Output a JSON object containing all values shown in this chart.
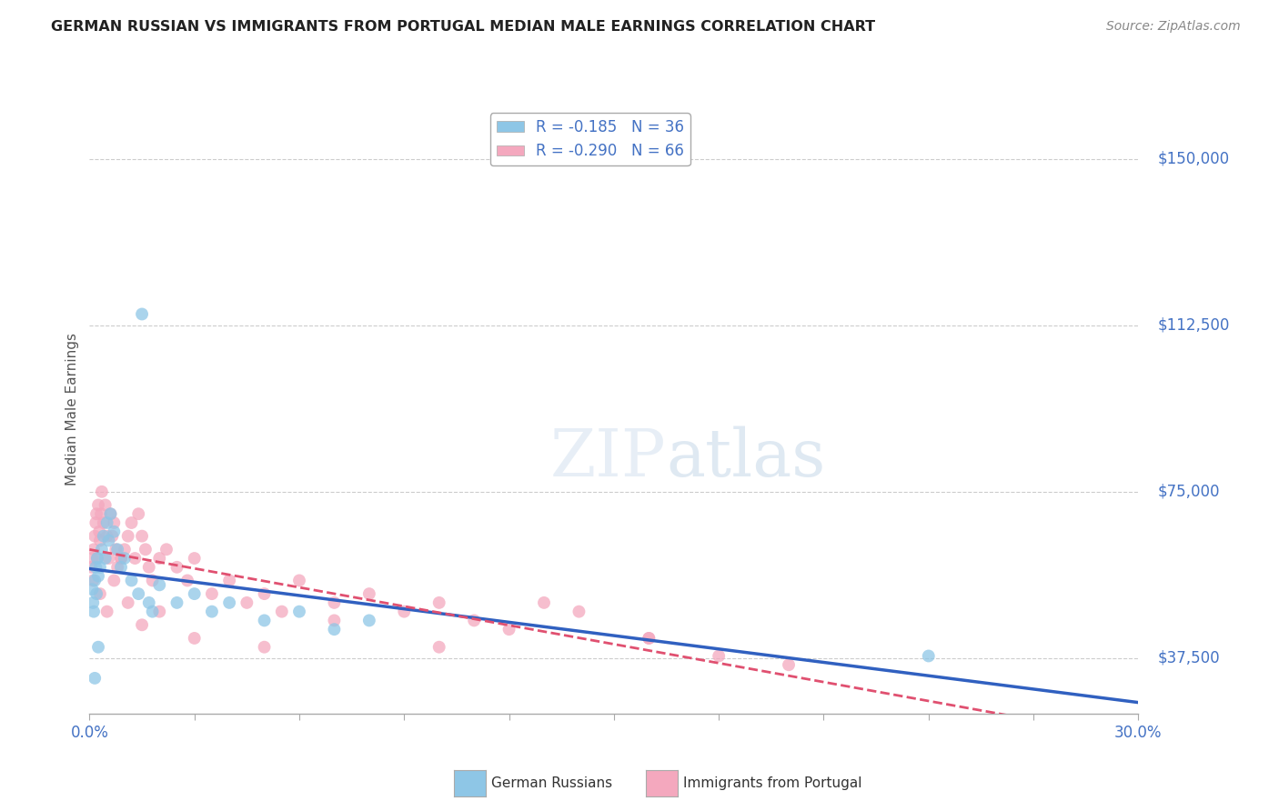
{
  "title": "GERMAN RUSSIAN VS IMMIGRANTS FROM PORTUGAL MEDIAN MALE EARNINGS CORRELATION CHART",
  "source": "Source: ZipAtlas.com",
  "ylabel": "Median Male Earnings",
  "yticks": [
    37500,
    75000,
    112500,
    150000
  ],
  "ytick_labels": [
    "$37,500",
    "$75,000",
    "$112,500",
    "$150,000"
  ],
  "xlim": [
    0.0,
    30.0
  ],
  "ylim": [
    25000,
    162000
  ],
  "watermark": "ZIPatlas",
  "legend_entry1": "R = -0.185   N = 36",
  "legend_entry2": "R = -0.290   N = 66",
  "legend_label1": "German Russians",
  "legend_label2": "Immigrants from Portugal",
  "color_blue": "#8ec6e6",
  "color_pink": "#f4a8be",
  "color_blue_line": "#3060c0",
  "color_pink_line": "#e05070",
  "axis_color": "#4472c4",
  "grid_color": "#cccccc",
  "blue_x": [
    0.08,
    0.1,
    0.12,
    0.15,
    0.18,
    0.2,
    0.22,
    0.25,
    0.3,
    0.35,
    0.4,
    0.45,
    0.5,
    0.55,
    0.6,
    0.7,
    0.8,
    0.9,
    1.0,
    1.2,
    1.4,
    1.7,
    2.0,
    2.5,
    3.0,
    3.5,
    4.0,
    5.0,
    6.0,
    7.0,
    8.0,
    1.5,
    1.8,
    24.0,
    0.15,
    0.25
  ],
  "blue_y": [
    53000,
    50000,
    48000,
    55000,
    58000,
    52000,
    60000,
    56000,
    58000,
    62000,
    65000,
    60000,
    68000,
    64000,
    70000,
    66000,
    62000,
    58000,
    60000,
    55000,
    52000,
    50000,
    54000,
    50000,
    52000,
    48000,
    50000,
    46000,
    48000,
    44000,
    46000,
    115000,
    48000,
    38000,
    33000,
    40000
  ],
  "pink_x": [
    0.05,
    0.08,
    0.1,
    0.12,
    0.15,
    0.18,
    0.2,
    0.22,
    0.25,
    0.28,
    0.3,
    0.33,
    0.35,
    0.4,
    0.45,
    0.5,
    0.55,
    0.6,
    0.65,
    0.7,
    0.75,
    0.8,
    0.9,
    1.0,
    1.1,
    1.2,
    1.3,
    1.4,
    1.5,
    1.6,
    1.7,
    1.8,
    2.0,
    2.2,
    2.5,
    2.8,
    3.0,
    3.5,
    4.0,
    4.5,
    5.0,
    5.5,
    6.0,
    7.0,
    8.0,
    9.0,
    10.0,
    11.0,
    12.0,
    14.0,
    16.0,
    18.0,
    20.0,
    0.3,
    0.5,
    0.7,
    0.9,
    1.1,
    1.5,
    2.0,
    3.0,
    5.0,
    7.0,
    10.0,
    13.0,
    16.0
  ],
  "pink_y": [
    58000,
    60000,
    55000,
    62000,
    65000,
    68000,
    70000,
    60000,
    72000,
    66000,
    64000,
    70000,
    75000,
    68000,
    72000,
    65000,
    60000,
    70000,
    65000,
    68000,
    62000,
    58000,
    60000,
    62000,
    65000,
    68000,
    60000,
    70000,
    65000,
    62000,
    58000,
    55000,
    60000,
    62000,
    58000,
    55000,
    60000,
    52000,
    55000,
    50000,
    52000,
    48000,
    55000,
    50000,
    52000,
    48000,
    50000,
    46000,
    44000,
    48000,
    42000,
    38000,
    36000,
    52000,
    48000,
    55000,
    60000,
    50000,
    45000,
    48000,
    42000,
    40000,
    46000,
    40000,
    50000,
    42000
  ]
}
